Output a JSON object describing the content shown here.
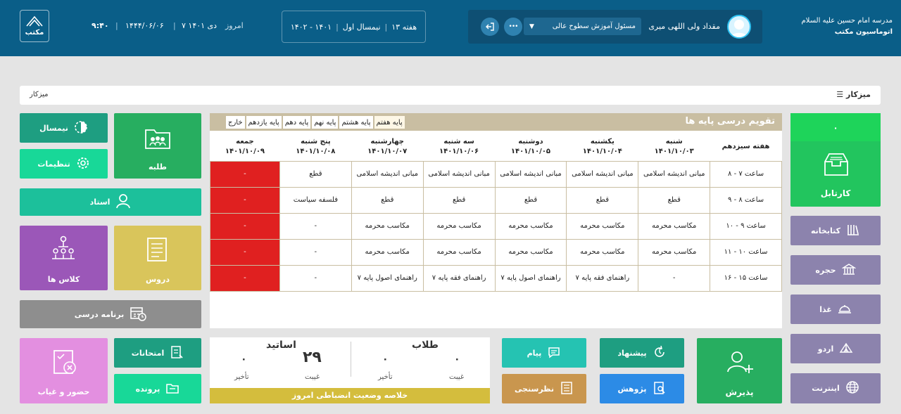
{
  "header": {
    "logo_text": "مکتب",
    "time": "۹:۴۰",
    "hijri_date": "۱۴۴۴/۰۶/۰۶",
    "solar_date": "۷ دی ۱۴۰۱",
    "today_label": "امروز",
    "week": "هفته ۱۳",
    "semester": "نیمسال اول",
    "year": "۱۴۰۱ - ۱۴۰۲",
    "user_name": "مقداد ولی اللهی میری",
    "role": "مسئول آموزش سطوح عالی",
    "more": "•••",
    "school_line1": "مدرسه امام حسین علیه السلام",
    "school_line2": "اتوماسیون مکتب"
  },
  "breadcrumb": {
    "right": "میزکار",
    "left": "میزکار"
  },
  "tiles": {
    "semester": "نیمسال",
    "settings": "تنظیمات",
    "student": "طلبه",
    "teacher": "استاد",
    "classes": "کلاس ها",
    "lessons": "دروس",
    "program": "برنامه درسی",
    "attendance": "حضور و غیاب",
    "exams": "امتحانات",
    "files": "پرونده",
    "message": "پیام",
    "survey": "نظرسنجی",
    "proposal": "پیشنهاد",
    "research": "پژوهش",
    "admission": "پذیرش",
    "cartable": "کارتابل",
    "cartable_count": "۰",
    "library": "کتابخانه",
    "room": "حجره",
    "food": "غذا",
    "camp": "اردو",
    "internet": "اینترنت"
  },
  "schedule": {
    "title": "تقویم درسی پایه ها",
    "tabs": [
      "پایه هفتم",
      "پایه هشتم",
      "پایه نهم",
      "پایه دهم",
      "پایه یازدهم",
      "خارج"
    ],
    "week_label": "هفته سیزدهم",
    "days": [
      {
        "name": "شنبه",
        "date": "۱۴۰۱/۱۰/۰۳"
      },
      {
        "name": "یکشنبه",
        "date": "۱۴۰۱/۱۰/۰۴"
      },
      {
        "name": "دوشنبه",
        "date": "۱۴۰۱/۱۰/۰۵"
      },
      {
        "name": "سه شنبه",
        "date": "۱۴۰۱/۱۰/۰۶"
      },
      {
        "name": "چهارشنبه",
        "date": "۱۴۰۱/۱۰/۰۷"
      },
      {
        "name": "پنج شنبه",
        "date": "۱۴۰۱/۱۰/۰۸"
      },
      {
        "name": "جمعه",
        "date": "۱۴۰۱/۱۰/۰۹"
      }
    ],
    "rows": [
      {
        "time": "ساعت ۷ - ۸",
        "cells": [
          "مبانی اندیشه اسلامی",
          "مبانی اندیشه اسلامی",
          "مبانی اندیشه اسلامی",
          "مبانی اندیشه اسلامی",
          "مبانی اندیشه اسلامی",
          "قطع",
          "-"
        ]
      },
      {
        "time": "ساعت ۸ - ۹",
        "cells": [
          "قطع",
          "قطع",
          "قطع",
          "قطع",
          "قطع",
          "فلسفه سیاست",
          "-"
        ]
      },
      {
        "time": "ساعت ۹ - ۱۰",
        "cells": [
          "مکاسب محرمه",
          "مکاسب محرمه",
          "مکاسب محرمه",
          "مکاسب محرمه",
          "مکاسب محرمه",
          "-",
          "-"
        ]
      },
      {
        "time": "ساعت ۱۰ - ۱۱",
        "cells": [
          "مکاسب محرمه",
          "مکاسب محرمه",
          "مکاسب محرمه",
          "مکاسب محرمه",
          "مکاسب محرمه",
          "-",
          "-"
        ]
      },
      {
        "time": "ساعت ۱۵ - ۱۶",
        "cells": [
          "-",
          "راهنمای فقه پایه ۷",
          "راهنمای اصول پایه ۷",
          "راهنمای فقه پایه ۷",
          "راهنمای اصول پایه ۷",
          "-",
          "-"
        ]
      }
    ]
  },
  "summary": {
    "title": "خلاصه وضعیت انضباطی امروز",
    "students_label": "طلاب",
    "teachers_label": "اساتید",
    "students_absent_value": "۰",
    "students_late_value": "۰",
    "teachers_absent_value": "۲۹",
    "teachers_late_value": "۰",
    "absent_label": "غیبت",
    "late_label": "تأخیر"
  },
  "colors": {
    "header": "#0a5e88",
    "teal": "#1e9e81",
    "mint": "#18d898",
    "green": "#27ae60",
    "purple": "#9b57b8",
    "yellow": "#d9c55b",
    "gray": "#8e8e8e",
    "pink": "#e38fe0",
    "brown": "#c9964e",
    "blue": "#2c8be6",
    "lavender": "#8c83ad",
    "red": "#e02020",
    "gold": "#d4bd3d"
  }
}
